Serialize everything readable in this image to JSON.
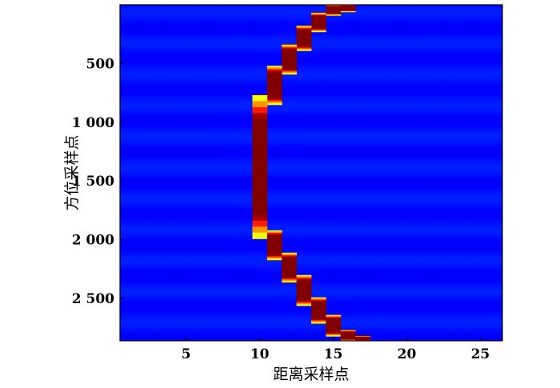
{
  "chart_data": {
    "type": "heatmap",
    "title": "",
    "xlabel": "距离采样点",
    "ylabel": "方位采样点",
    "xlim": [
      0.5,
      26.5
    ],
    "ylim": [
      1,
      2860
    ],
    "y_reversed": true,
    "x_ticks": [
      {
        "value": 5,
        "label": "5"
      },
      {
        "value": 10,
        "label": "10"
      },
      {
        "value": 15,
        "label": "15"
      },
      {
        "value": 20,
        "label": "20"
      },
      {
        "value": 25,
        "label": "25"
      }
    ],
    "y_ticks": [
      {
        "value": 500,
        "label": "500"
      },
      {
        "value": 1000,
        "label": "1 000"
      },
      {
        "value": 1500,
        "label": "1 500"
      },
      {
        "value": 2000,
        "label": "2 000"
      },
      {
        "value": 2500,
        "label": "2 500"
      }
    ],
    "colormap": "jet",
    "background_color": "#2b2f80",
    "ridge": [
      {
        "x": 15,
        "y_from": 1,
        "y_to": 90
      },
      {
        "x": 16,
        "y_from": 1,
        "y_to": 60
      },
      {
        "x": 14,
        "y_from": 70,
        "y_to": 230
      },
      {
        "x": 13,
        "y_from": 180,
        "y_to": 390
      },
      {
        "x": 12,
        "y_from": 340,
        "y_to": 590
      },
      {
        "x": 11,
        "y_from": 520,
        "y_to": 850
      },
      {
        "x": 10,
        "y_from": 770,
        "y_to": 1990
      },
      {
        "x": 11,
        "y_from": 1920,
        "y_to": 2170
      },
      {
        "x": 12,
        "y_from": 2110,
        "y_to": 2360
      },
      {
        "x": 13,
        "y_from": 2300,
        "y_to": 2560
      },
      {
        "x": 14,
        "y_from": 2490,
        "y_to": 2710
      },
      {
        "x": 15,
        "y_from": 2640,
        "y_to": 2820
      },
      {
        "x": 16,
        "y_from": 2770,
        "y_to": 2860
      },
      {
        "x": 17,
        "y_from": 2820,
        "y_to": 2860
      }
    ]
  }
}
